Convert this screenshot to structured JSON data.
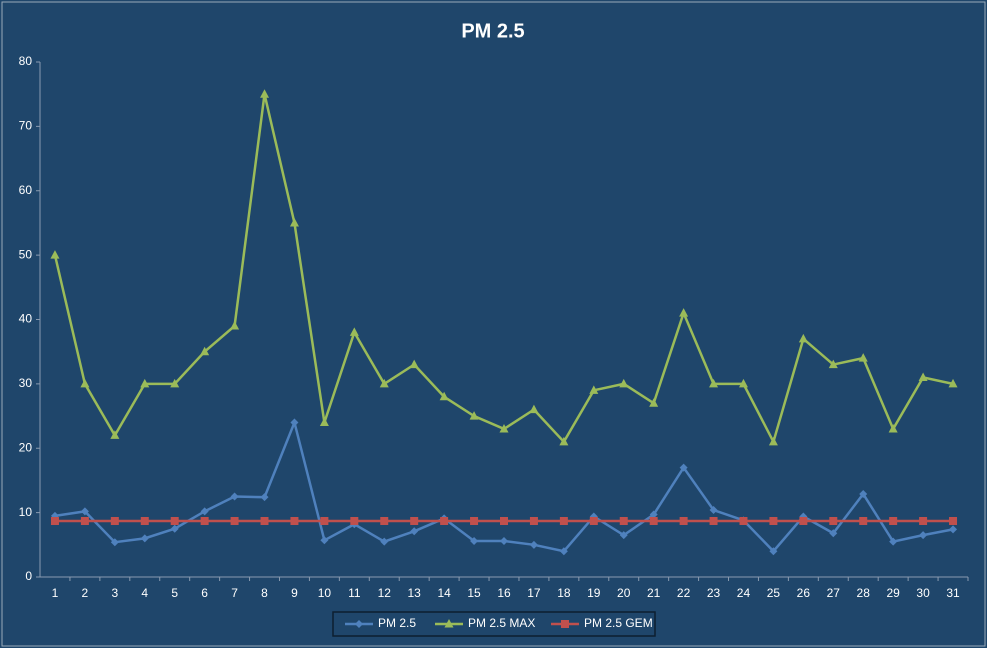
{
  "chart_data": {
    "type": "line",
    "title": "PM 2.5",
    "categories": [
      "1",
      "2",
      "3",
      "4",
      "5",
      "6",
      "7",
      "8",
      "9",
      "10",
      "11",
      "12",
      "13",
      "14",
      "15",
      "16",
      "17",
      "18",
      "19",
      "20",
      "21",
      "22",
      "23",
      "24",
      "25",
      "26",
      "27",
      "28",
      "29",
      "30",
      "31"
    ],
    "series": [
      {
        "name": "PM 2.5",
        "color": "#4f81bd",
        "marker": "diamond",
        "values": [
          9.5,
          10.2,
          5.4,
          6,
          7.5,
          10.2,
          12.5,
          12.4,
          24,
          5.7,
          8.2,
          5.5,
          7.1,
          9.1,
          5.6,
          5.6,
          5,
          4,
          9.4,
          6.5,
          9.7,
          17,
          10.4,
          8.8,
          4,
          9.4,
          6.8,
          12.9,
          5.5,
          6.5,
          7.4
        ]
      },
      {
        "name": "PM 2.5 MAX",
        "color": "#9bbb59",
        "marker": "triangle",
        "values": [
          50,
          30,
          22,
          30,
          30,
          35,
          39,
          75,
          55,
          24,
          38,
          30,
          33,
          28,
          25,
          23,
          26,
          21,
          29,
          30,
          27,
          41,
          30,
          30,
          21,
          37,
          33,
          34,
          23,
          31,
          30
        ]
      },
      {
        "name": "PM 2.5 GEM",
        "color": "#c0504d",
        "marker": "square",
        "values": [
          8.7,
          8.7,
          8.7,
          8.7,
          8.7,
          8.7,
          8.7,
          8.7,
          8.7,
          8.7,
          8.7,
          8.7,
          8.7,
          8.7,
          8.7,
          8.7,
          8.7,
          8.7,
          8.7,
          8.7,
          8.7,
          8.7,
          8.7,
          8.7,
          8.7,
          8.7,
          8.7,
          8.7,
          8.7,
          8.7,
          8.7
        ]
      }
    ],
    "ylim": [
      0,
      80
    ],
    "yticks": [
      0,
      10,
      20,
      30,
      40,
      50,
      60,
      70,
      80
    ],
    "grid": false,
    "legend": "bottom"
  }
}
